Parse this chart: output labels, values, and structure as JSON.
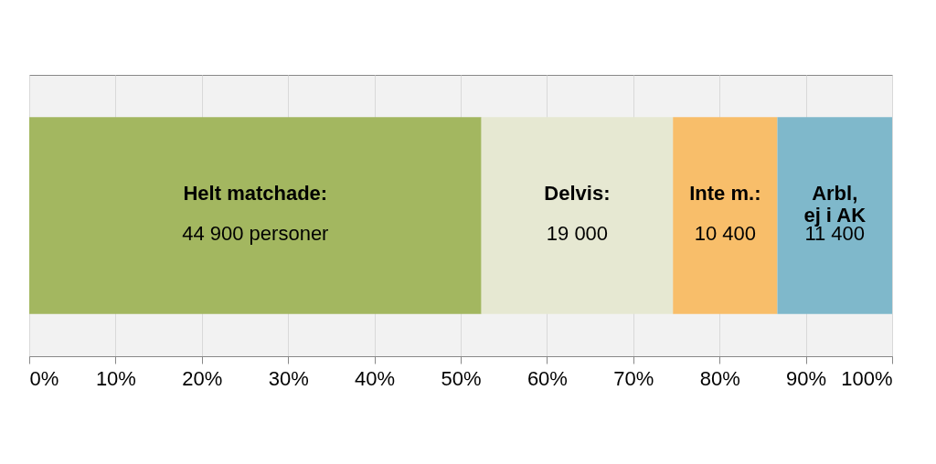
{
  "chart_data": {
    "type": "bar",
    "stacked": true,
    "orientation": "horizontal",
    "categories": [
      null
    ],
    "series": [
      {
        "name": "Helt matchade:\n44 900 personer",
        "color": "#a3b760",
        "values": [
          52.4
        ]
      },
      {
        "name": "Delvis:\n19 000",
        "color": "#e6e8d2",
        "values": [
          22.2
        ]
      },
      {
        "name": "Inte m.:\n10 400",
        "color": "#f8be6a",
        "values": [
          12.1
        ]
      },
      {
        "name": "Arbl,\nej i AK\n11 400",
        "color": "#7fb8cb",
        "values": [
          13.3
        ]
      }
    ],
    "xlim": [
      0,
      100
    ],
    "xticks": [
      {
        "value": 0,
        "label": "0%"
      },
      {
        "value": 10,
        "label": "10%"
      },
      {
        "value": 20,
        "label": "20%"
      },
      {
        "value": 30,
        "label": "30%"
      },
      {
        "value": 40,
        "label": "40%"
      },
      {
        "value": 50,
        "label": "50%"
      },
      {
        "value": 60,
        "label": "60%"
      },
      {
        "value": 70,
        "label": "70%"
      },
      {
        "value": 80,
        "label": "80%"
      },
      {
        "value": 90,
        "label": "90%"
      },
      {
        "value": 100,
        "label": "100%"
      }
    ],
    "grid": "x",
    "legend": false,
    "tick_labels": "x"
  }
}
